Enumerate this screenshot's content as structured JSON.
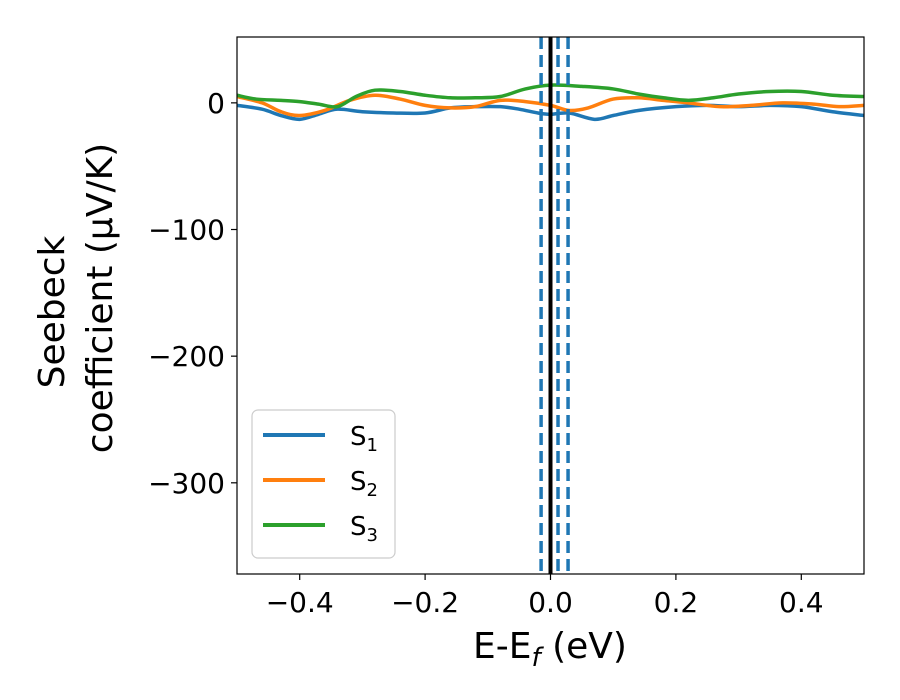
{
  "chart_data": {
    "type": "line",
    "xlabel": "E-E",
    "xlabel_sub": "f",
    "xlabel_unit": " (eV)",
    "ylabel": "Seebeck",
    "ylabel_line2": "coefficient  (μV/K)",
    "xlim": [
      -0.5,
      0.5
    ],
    "ylim": [
      -372,
      52
    ],
    "x_ticks": [
      -0.4,
      -0.2,
      0.0,
      0.2,
      0.4
    ],
    "x_tick_labels": [
      "−0.4",
      "−0.2",
      "0.0",
      "0.2",
      "0.4"
    ],
    "y_ticks": [
      0,
      -100,
      -200,
      -300
    ],
    "y_tick_labels": [
      "0",
      "−100",
      "−200",
      "−300"
    ],
    "grid": false,
    "legend_position": "lower-left",
    "vlines": [
      {
        "x": 0.0,
        "style": "solid",
        "color": "#000000"
      },
      {
        "x": -0.015,
        "style": "dashed",
        "color": "#1f77b4"
      },
      {
        "x": 0.012,
        "style": "dashed",
        "color": "#1f77b4"
      },
      {
        "x": 0.028,
        "style": "dashed",
        "color": "#1f77b4"
      }
    ],
    "series": [
      {
        "name": "S",
        "name_sub": "1",
        "color": "#1f77b4",
        "points": [
          [
            -0.5,
            -2
          ],
          [
            -0.46,
            -5
          ],
          [
            -0.43,
            -10
          ],
          [
            -0.4,
            -13
          ],
          [
            -0.37,
            -9
          ],
          [
            -0.34,
            -5
          ],
          [
            -0.3,
            -7
          ],
          [
            -0.25,
            -8
          ],
          [
            -0.2,
            -8
          ],
          [
            -0.16,
            -4
          ],
          [
            -0.12,
            -3
          ],
          [
            -0.08,
            -3
          ],
          [
            -0.05,
            -5
          ],
          [
            -0.02,
            -8
          ],
          [
            0.0,
            -9
          ],
          [
            0.03,
            -8
          ],
          [
            0.07,
            -13
          ],
          [
            0.1,
            -10
          ],
          [
            0.14,
            -6
          ],
          [
            0.2,
            -3
          ],
          [
            0.25,
            -2
          ],
          [
            0.3,
            -3
          ],
          [
            0.35,
            -2
          ],
          [
            0.4,
            -3
          ],
          [
            0.45,
            -7
          ],
          [
            0.5,
            -10
          ]
        ]
      },
      {
        "name": "S",
        "name_sub": "2",
        "color": "#ff7f0e",
        "points": [
          [
            -0.5,
            5
          ],
          [
            -0.46,
            0
          ],
          [
            -0.43,
            -7
          ],
          [
            -0.4,
            -10
          ],
          [
            -0.36,
            -6
          ],
          [
            -0.32,
            2
          ],
          [
            -0.28,
            6
          ],
          [
            -0.24,
            3
          ],
          [
            -0.2,
            -2
          ],
          [
            -0.16,
            -4
          ],
          [
            -0.12,
            -3
          ],
          [
            -0.08,
            2
          ],
          [
            -0.04,
            1
          ],
          [
            0.0,
            -2
          ],
          [
            0.03,
            -6
          ],
          [
            0.06,
            -4
          ],
          [
            0.1,
            3
          ],
          [
            0.14,
            4
          ],
          [
            0.18,
            2
          ],
          [
            0.22,
            0
          ],
          [
            0.27,
            -3
          ],
          [
            0.32,
            -2
          ],
          [
            0.37,
            0
          ],
          [
            0.42,
            -1
          ],
          [
            0.46,
            -3
          ],
          [
            0.5,
            -2
          ]
        ]
      },
      {
        "name": "S",
        "name_sub": "3",
        "color": "#2ca02c",
        "points": [
          [
            -0.5,
            6
          ],
          [
            -0.47,
            3
          ],
          [
            -0.43,
            2
          ],
          [
            -0.4,
            1
          ],
          [
            -0.37,
            -1
          ],
          [
            -0.34,
            -3
          ],
          [
            -0.31,
            5
          ],
          [
            -0.28,
            10
          ],
          [
            -0.24,
            9
          ],
          [
            -0.2,
            6
          ],
          [
            -0.16,
            4
          ],
          [
            -0.12,
            4
          ],
          [
            -0.08,
            5
          ],
          [
            -0.04,
            11
          ],
          [
            0.0,
            14
          ],
          [
            0.05,
            13
          ],
          [
            0.1,
            11
          ],
          [
            0.14,
            7
          ],
          [
            0.18,
            4
          ],
          [
            0.22,
            2
          ],
          [
            0.26,
            4
          ],
          [
            0.3,
            7
          ],
          [
            0.35,
            9
          ],
          [
            0.4,
            9
          ],
          [
            0.45,
            6
          ],
          [
            0.5,
            5
          ]
        ]
      }
    ]
  }
}
